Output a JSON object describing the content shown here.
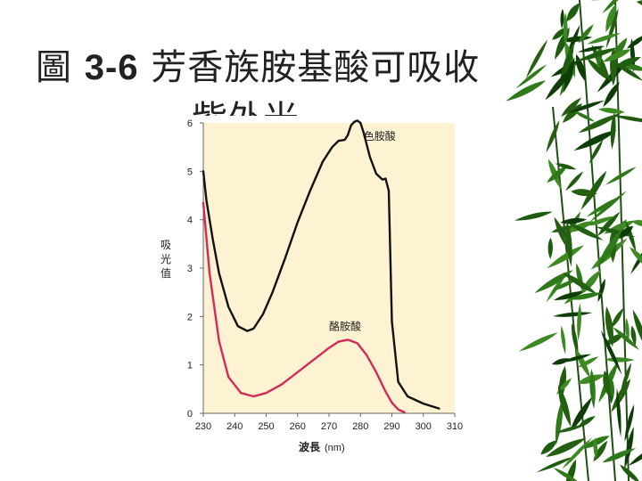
{
  "slide": {
    "title_prefix": "圖",
    "title_number": "3-6",
    "title_text": "芳香族胺基酸可吸收",
    "title_line2": "紫外光"
  },
  "chart_data": {
    "type": "line",
    "xlabel": "波長",
    "xunit": "(nm)",
    "ylabel": "吸光值",
    "xlim": [
      230,
      310
    ],
    "ylim": [
      0,
      6
    ],
    "xticks": [
      230,
      240,
      250,
      260,
      270,
      280,
      290,
      300,
      310
    ],
    "yticks": [
      0,
      1,
      2,
      3,
      4,
      5,
      6
    ],
    "plot_background": "#fdf2d2",
    "series": [
      {
        "name": "色胺酸",
        "color": "#111111",
        "x": [
          230,
          231,
          233,
          235,
          238,
          241,
          244,
          246,
          249,
          252,
          256,
          260,
          264,
          268,
          271,
          273,
          275,
          276,
          277,
          278,
          279,
          280,
          281,
          283,
          285,
          287,
          288,
          289,
          290,
          292,
          295,
          300,
          305
        ],
        "y": [
          5.0,
          4.4,
          3.6,
          2.9,
          2.2,
          1.8,
          1.7,
          1.75,
          2.05,
          2.5,
          3.2,
          3.95,
          4.6,
          5.2,
          5.5,
          5.63,
          5.65,
          5.75,
          5.95,
          6.02,
          6.05,
          6.0,
          5.8,
          5.3,
          4.95,
          4.83,
          4.85,
          4.6,
          1.9,
          0.65,
          0.35,
          0.2,
          0.1
        ]
      },
      {
        "name": "酪胺酸",
        "color": "#d42a5a",
        "x": [
          230,
          232,
          235,
          238,
          242,
          246,
          250,
          255,
          260,
          265,
          270,
          273,
          276,
          279,
          282,
          285,
          288,
          290,
          292,
          294
        ],
        "y": [
          4.35,
          2.9,
          1.5,
          0.75,
          0.42,
          0.35,
          0.42,
          0.6,
          0.85,
          1.1,
          1.35,
          1.48,
          1.52,
          1.45,
          1.2,
          0.85,
          0.45,
          0.22,
          0.08,
          0.02
        ]
      }
    ]
  }
}
